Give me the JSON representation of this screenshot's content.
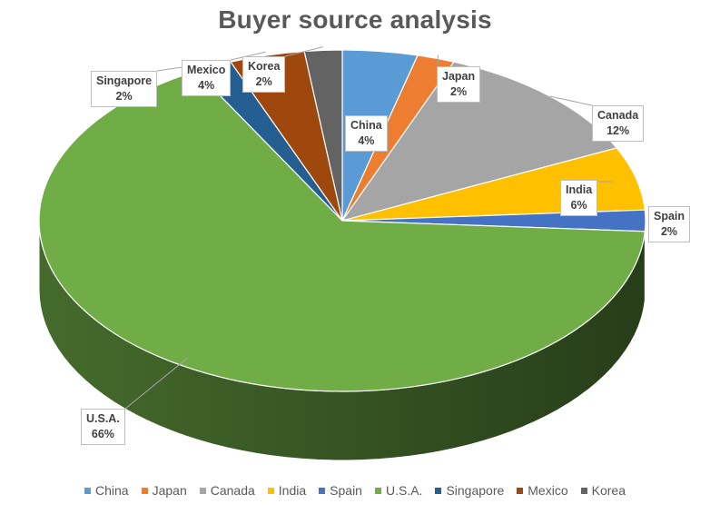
{
  "title": "Buyer source analysis",
  "chart_data": {
    "type": "pie",
    "title": "Buyer source analysis",
    "categories": [
      "China",
      "Japan",
      "Canada",
      "India",
      "Spain",
      "U.S.A.",
      "Singapore",
      "Mexico",
      "Korea"
    ],
    "values": [
      4,
      2,
      12,
      6,
      2,
      66,
      2,
      4,
      2
    ],
    "value_labels": [
      "4%",
      "2%",
      "12%",
      "6%",
      "2%",
      "66%",
      "2%",
      "4%",
      "2%"
    ],
    "colors": [
      "#5B9BD5",
      "#ED7D31",
      "#A5A5A5",
      "#FFC000",
      "#4472C4",
      "#70AD47",
      "#255E91",
      "#9E480E",
      "#636363"
    ],
    "legend_position": "bottom",
    "style": "3d-pie"
  }
}
